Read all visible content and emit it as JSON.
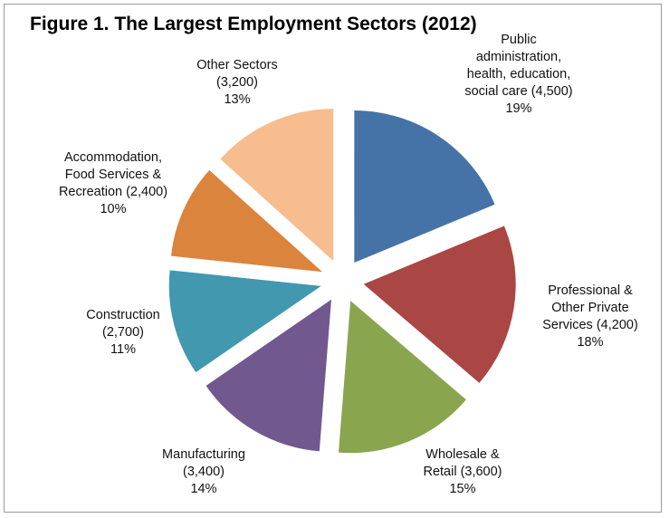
{
  "chart_data": {
    "type": "pie",
    "title": "Figure 1. The Largest Employment Sectors (2012)",
    "exploded": true,
    "slices": [
      {
        "label": "Public administration, health, education, social care",
        "value": 4500,
        "value_text": "4,500",
        "percent": "19%",
        "color": "#4572a7",
        "label_lines": [
          "Public",
          "administration,",
          "health, education,",
          "social care (4,500)",
          "19%"
        ]
      },
      {
        "label": "Professional & Other Private Services",
        "value": 4200,
        "value_text": "4,200",
        "percent": "18%",
        "color": "#aa4643",
        "label_lines": [
          "Professional &",
          "Other Private",
          "Services (4,200)",
          "18%"
        ]
      },
      {
        "label": "Wholesale & Retail",
        "value": 3600,
        "value_text": "3,600",
        "percent": "15%",
        "color": "#89a54e",
        "label_lines": [
          "Wholesale &",
          "Retail (3,600)",
          "15%"
        ]
      },
      {
        "label": "Manufacturing",
        "value": 3400,
        "value_text": "3,400",
        "percent": "14%",
        "color": "#71588f",
        "label_lines": [
          "Manufacturing",
          "(3,400)",
          "14%"
        ]
      },
      {
        "label": "Construction",
        "value": 2700,
        "value_text": "2,700",
        "percent": "11%",
        "color": "#4198af",
        "label_lines": [
          "Construction",
          "(2,700)",
          "11%"
        ]
      },
      {
        "label": "Accommodation, Food Services & Recreation",
        "value": 2400,
        "value_text": "2,400",
        "percent": "10%",
        "color": "#db843d",
        "label_lines": [
          "Accommodation,",
          "Food Services &",
          "Recreation (2,400)",
          "10%"
        ]
      },
      {
        "label": "Other Sectors",
        "value": 3200,
        "value_text": "3,200",
        "percent": "13%",
        "color": "#f8bd8f",
        "label_lines": [
          "Other Sectors",
          "(3,200)",
          "13%"
        ]
      }
    ]
  }
}
